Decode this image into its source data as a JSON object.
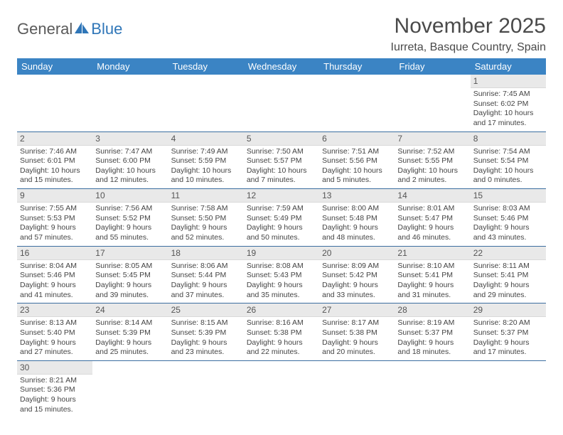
{
  "logo": {
    "text1": "General",
    "text2": "Blue"
  },
  "title": "November 2025",
  "location": "Iurreta, Basque Country, Spain",
  "colors": {
    "header_bg": "#3b84c4",
    "header_text": "#ffffff",
    "row_border": "#3b6ea0",
    "daynum_bg": "#e9e9e9",
    "logo_gray": "#5a5a5a",
    "logo_blue": "#2f76b8"
  },
  "daysOfWeek": [
    "Sunday",
    "Monday",
    "Tuesday",
    "Wednesday",
    "Thursday",
    "Friday",
    "Saturday"
  ],
  "startOffset": 6,
  "days": [
    {
      "n": 1,
      "sr": "7:45 AM",
      "ss": "6:02 PM",
      "dl": "10 hours and 17 minutes."
    },
    {
      "n": 2,
      "sr": "7:46 AM",
      "ss": "6:01 PM",
      "dl": "10 hours and 15 minutes."
    },
    {
      "n": 3,
      "sr": "7:47 AM",
      "ss": "6:00 PM",
      "dl": "10 hours and 12 minutes."
    },
    {
      "n": 4,
      "sr": "7:49 AM",
      "ss": "5:59 PM",
      "dl": "10 hours and 10 minutes."
    },
    {
      "n": 5,
      "sr": "7:50 AM",
      "ss": "5:57 PM",
      "dl": "10 hours and 7 minutes."
    },
    {
      "n": 6,
      "sr": "7:51 AM",
      "ss": "5:56 PM",
      "dl": "10 hours and 5 minutes."
    },
    {
      "n": 7,
      "sr": "7:52 AM",
      "ss": "5:55 PM",
      "dl": "10 hours and 2 minutes."
    },
    {
      "n": 8,
      "sr": "7:54 AM",
      "ss": "5:54 PM",
      "dl": "10 hours and 0 minutes."
    },
    {
      "n": 9,
      "sr": "7:55 AM",
      "ss": "5:53 PM",
      "dl": "9 hours and 57 minutes."
    },
    {
      "n": 10,
      "sr": "7:56 AM",
      "ss": "5:52 PM",
      "dl": "9 hours and 55 minutes."
    },
    {
      "n": 11,
      "sr": "7:58 AM",
      "ss": "5:50 PM",
      "dl": "9 hours and 52 minutes."
    },
    {
      "n": 12,
      "sr": "7:59 AM",
      "ss": "5:49 PM",
      "dl": "9 hours and 50 minutes."
    },
    {
      "n": 13,
      "sr": "8:00 AM",
      "ss": "5:48 PM",
      "dl": "9 hours and 48 minutes."
    },
    {
      "n": 14,
      "sr": "8:01 AM",
      "ss": "5:47 PM",
      "dl": "9 hours and 46 minutes."
    },
    {
      "n": 15,
      "sr": "8:03 AM",
      "ss": "5:46 PM",
      "dl": "9 hours and 43 minutes."
    },
    {
      "n": 16,
      "sr": "8:04 AM",
      "ss": "5:46 PM",
      "dl": "9 hours and 41 minutes."
    },
    {
      "n": 17,
      "sr": "8:05 AM",
      "ss": "5:45 PM",
      "dl": "9 hours and 39 minutes."
    },
    {
      "n": 18,
      "sr": "8:06 AM",
      "ss": "5:44 PM",
      "dl": "9 hours and 37 minutes."
    },
    {
      "n": 19,
      "sr": "8:08 AM",
      "ss": "5:43 PM",
      "dl": "9 hours and 35 minutes."
    },
    {
      "n": 20,
      "sr": "8:09 AM",
      "ss": "5:42 PM",
      "dl": "9 hours and 33 minutes."
    },
    {
      "n": 21,
      "sr": "8:10 AM",
      "ss": "5:41 PM",
      "dl": "9 hours and 31 minutes."
    },
    {
      "n": 22,
      "sr": "8:11 AM",
      "ss": "5:41 PM",
      "dl": "9 hours and 29 minutes."
    },
    {
      "n": 23,
      "sr": "8:13 AM",
      "ss": "5:40 PM",
      "dl": "9 hours and 27 minutes."
    },
    {
      "n": 24,
      "sr": "8:14 AM",
      "ss": "5:39 PM",
      "dl": "9 hours and 25 minutes."
    },
    {
      "n": 25,
      "sr": "8:15 AM",
      "ss": "5:39 PM",
      "dl": "9 hours and 23 minutes."
    },
    {
      "n": 26,
      "sr": "8:16 AM",
      "ss": "5:38 PM",
      "dl": "9 hours and 22 minutes."
    },
    {
      "n": 27,
      "sr": "8:17 AM",
      "ss": "5:38 PM",
      "dl": "9 hours and 20 minutes."
    },
    {
      "n": 28,
      "sr": "8:19 AM",
      "ss": "5:37 PM",
      "dl": "9 hours and 18 minutes."
    },
    {
      "n": 29,
      "sr": "8:20 AM",
      "ss": "5:37 PM",
      "dl": "9 hours and 17 minutes."
    },
    {
      "n": 30,
      "sr": "8:21 AM",
      "ss": "5:36 PM",
      "dl": "9 hours and 15 minutes."
    }
  ],
  "labels": {
    "sunrise": "Sunrise:",
    "sunset": "Sunset:",
    "daylight": "Daylight:"
  }
}
